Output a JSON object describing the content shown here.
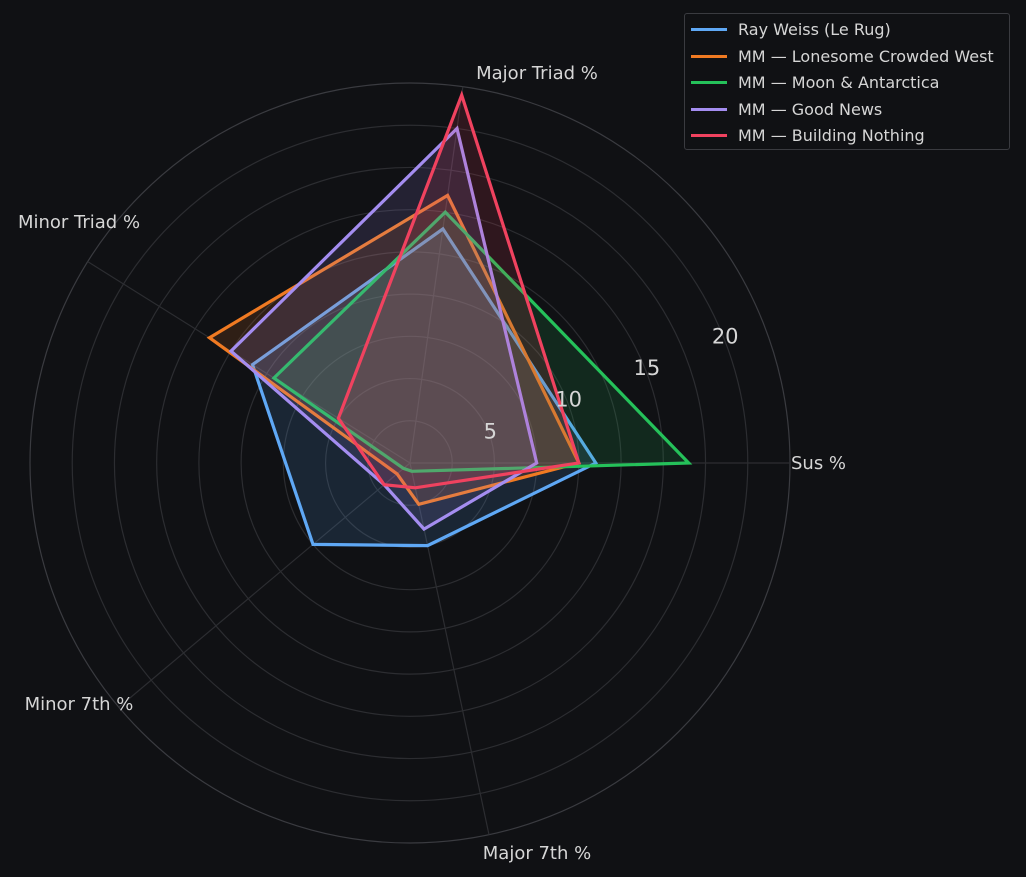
{
  "chart_data": {
    "type": "radar",
    "axes": [
      "Sus %",
      "Major Triad %",
      "Minor Triad %",
      "Minor 7th %",
      "Major 7th %"
    ],
    "r_ticks": [
      5,
      10,
      15,
      20
    ],
    "rlim": [
      0,
      22.5
    ],
    "grid": true,
    "legend_position": "top-right",
    "series": [
      {
        "name": "Ray Weiss (Le Rug)",
        "color": "#5fa8f5",
        "values": [
          11,
          14,
          11,
          7.5,
          5
        ]
      },
      {
        "name": "MM — Lonesome Crowded West",
        "color": "#f07a22",
        "values": [
          10,
          16,
          14,
          1,
          2.5
        ]
      },
      {
        "name": "MM — Moon & Antarctica",
        "color": "#25c15a",
        "values": [
          16.5,
          15,
          9.5,
          0.5,
          0.5
        ]
      },
      {
        "name": "MM — Good News",
        "color": "#a48df0",
        "values": [
          7.5,
          20,
          12.5,
          2,
          4
        ]
      },
      {
        "name": "MM — Building Nothing",
        "color": "#f0425f",
        "values": [
          10,
          22,
          5,
          2,
          1.5
        ]
      }
    ]
  }
}
